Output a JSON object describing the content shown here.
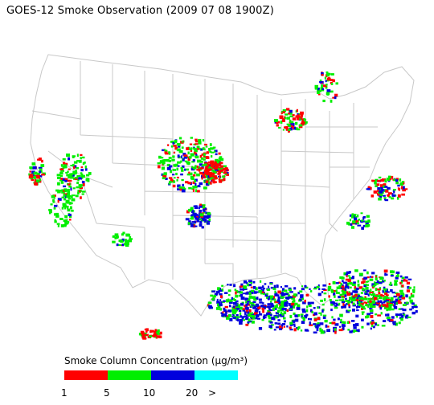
{
  "title": "GOES-12 Smoke Observation (2009 07 08  1900Z)",
  "legend": {
    "title_text": "Smoke Column Concentration (",
    "title_unit": "µg/m³",
    "title_close": ")",
    "bins": [
      {
        "label": "1-5",
        "color": "#ff0000"
      },
      {
        "label": "5-10",
        "color": "#00ee00"
      },
      {
        "label": "10-20",
        "color": "#0000dd"
      },
      {
        "label": ">20",
        "color": "#00ffff"
      }
    ],
    "ticks": [
      "1",
      "5",
      "10",
      "20",
      ">"
    ]
  },
  "colors": {
    "boundary": "#c8c8c8",
    "background": "#ffffff"
  }
}
